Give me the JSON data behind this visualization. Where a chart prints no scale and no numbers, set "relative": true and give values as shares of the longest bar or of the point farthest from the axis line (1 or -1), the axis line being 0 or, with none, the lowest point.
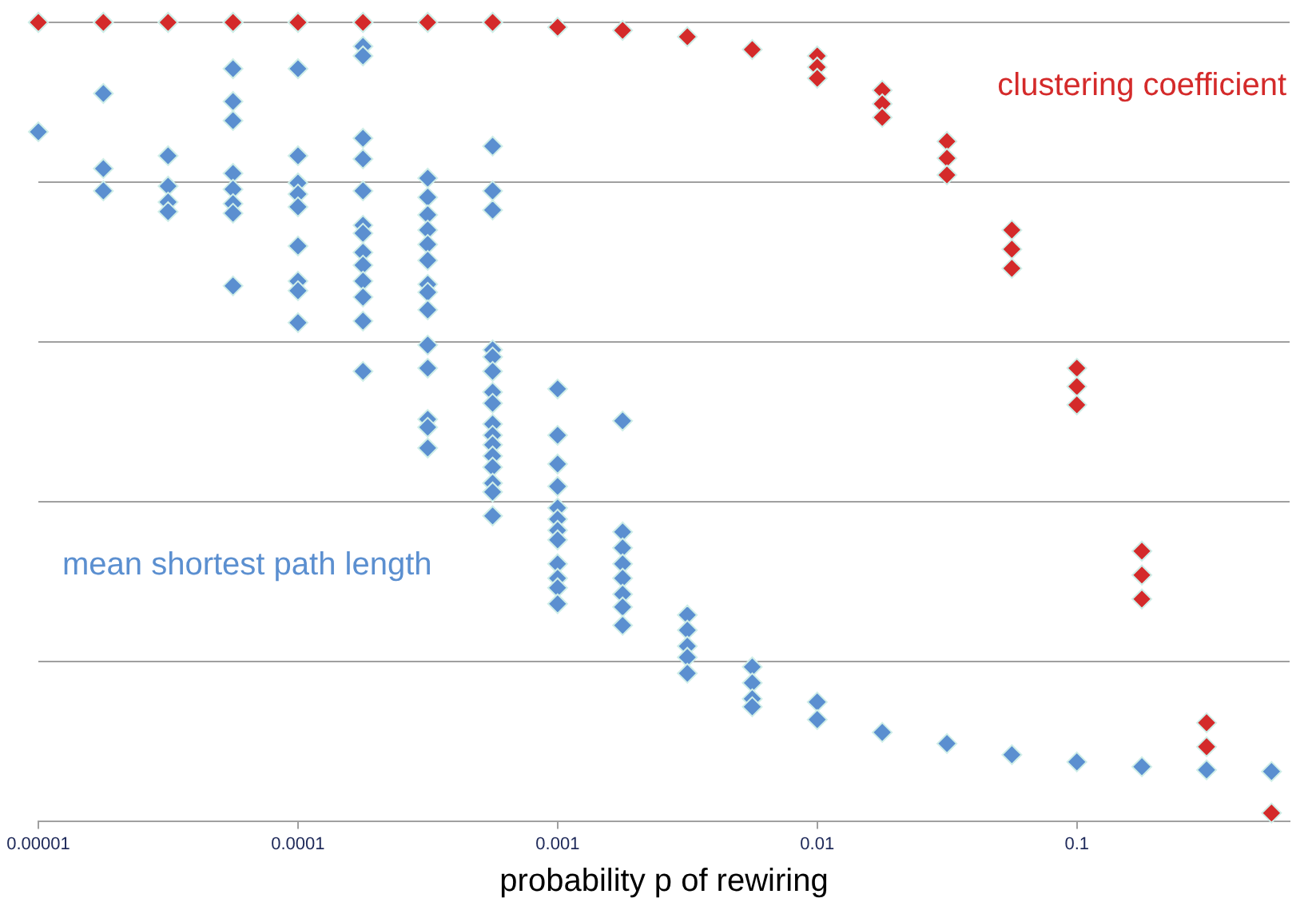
{
  "chart_data": {
    "type": "scatter",
    "xlabel": "probability p of rewiring",
    "log": "x",
    "xlim": [
      1e-05,
      0.66
    ],
    "xticks": [
      {
        "value": 1e-05,
        "label": "0.00001"
      },
      {
        "value": 0.0001,
        "label": "0.0001"
      },
      {
        "value": 0.001,
        "label": "0.001"
      },
      {
        "value": 0.01,
        "label": "0.01"
      },
      {
        "value": 0.1,
        "label": "0.1"
      }
    ],
    "relative": true,
    "grid": "y",
    "legend": false,
    "marker": "diamond",
    "series": [
      {
        "name": "clustering coefficient",
        "color": "#d42a2a",
        "x": [
          1e-05,
          1.78e-05,
          3.16e-05,
          5.62e-05,
          0.0001,
          0.000178,
          0.000316,
          0.000562,
          0.001,
          0.00178,
          0.00316,
          0.00562,
          0.01,
          0.01,
          0.01,
          0.0178,
          0.0178,
          0.0178,
          0.0316,
          0.0316,
          0.0316,
          0.0562,
          0.0562,
          0.0562,
          0.1,
          0.1,
          0.1,
          0.178,
          0.178,
          0.178,
          0.316,
          0.316,
          0.562
        ],
        "values": [
          1,
          1,
          1,
          1,
          1,
          1,
          1,
          1,
          0.994,
          0.99,
          0.982,
          0.966,
          0.958,
          0.944,
          0.93,
          0.915,
          0.898,
          0.881,
          0.851,
          0.83,
          0.809,
          0.74,
          0.716,
          0.692,
          0.567,
          0.544,
          0.521,
          0.338,
          0.308,
          0.278,
          0.123,
          0.093,
          0.01
        ]
      },
      {
        "name": "mean shortest path length",
        "color": "#5b8fd0",
        "x": [
          1e-05,
          1e-05,
          1.78e-05,
          1.78e-05,
          1.78e-05,
          1.78e-05,
          3.16e-05,
          3.16e-05,
          3.16e-05,
          3.16e-05,
          3.16e-05,
          5.62e-05,
          5.62e-05,
          5.62e-05,
          5.62e-05,
          5.62e-05,
          5.62e-05,
          5.62e-05,
          5.62e-05,
          5.62e-05,
          0.0001,
          0.0001,
          0.0001,
          0.0001,
          0.0001,
          0.0001,
          0.0001,
          0.0001,
          0.0001,
          0.0001,
          0.000178,
          0.000178,
          0.000178,
          0.000178,
          0.000178,
          0.000178,
          0.000178,
          0.000178,
          0.000178,
          0.000178,
          0.000178,
          0.000178,
          0.000178,
          0.000178,
          0.000316,
          0.000316,
          0.000316,
          0.000316,
          0.000316,
          0.000316,
          0.000316,
          0.000316,
          0.000316,
          0.000316,
          0.000316,
          0.000316,
          0.000316,
          0.000316,
          0.000316,
          0.000562,
          0.000562,
          0.000562,
          0.000562,
          0.000562,
          0.000562,
          0.000562,
          0.000562,
          0.000562,
          0.000562,
          0.000562,
          0.000562,
          0.000562,
          0.000562,
          0.000562,
          0.000562,
          0.000562,
          0.001,
          0.001,
          0.001,
          0.001,
          0.001,
          0.001,
          0.001,
          0.001,
          0.001,
          0.001,
          0.001,
          0.001,
          0.00178,
          0.00178,
          0.00178,
          0.00178,
          0.00178,
          0.00178,
          0.00178,
          0.00178,
          0.00316,
          0.00316,
          0.00316,
          0.00316,
          0.00316,
          0.00562,
          0.00562,
          0.00562,
          0.00562,
          0.01,
          0.01,
          0.0178,
          0.0316,
          0.0562,
          0.1,
          0.178,
          0.316,
          0.562
        ],
        "values": [
          1,
          0.863,
          1,
          0.911,
          0.817,
          0.789,
          1,
          0.833,
          0.795,
          0.775,
          0.763,
          1,
          0.942,
          0.901,
          0.877,
          0.811,
          0.791,
          0.773,
          0.761,
          0.67,
          1,
          0.942,
          0.833,
          0.799,
          0.785,
          0.769,
          0.72,
          0.676,
          0.664,
          0.624,
          1,
          0.97,
          0.958,
          0.855,
          0.829,
          0.789,
          0.746,
          0.736,
          0.712,
          0.696,
          0.676,
          0.656,
          0.626,
          0.563,
          1,
          0.805,
          0.781,
          0.759,
          0.74,
          0.722,
          0.702,
          0.672,
          0.662,
          0.64,
          0.596,
          0.567,
          0.503,
          0.493,
          0.467,
          1,
          0.845,
          0.789,
          0.765,
          0.59,
          0.581,
          0.563,
          0.537,
          0.523,
          0.497,
          0.483,
          0.471,
          0.457,
          0.443,
          0.423,
          0.412,
          0.382,
          0.541,
          0.483,
          0.447,
          0.419,
          0.392,
          0.378,
          0.364,
          0.352,
          0.322,
          0.304,
          0.292,
          0.272,
          0.501,
          0.362,
          0.342,
          0.322,
          0.304,
          0.284,
          0.268,
          0.245,
          0.258,
          0.239,
          0.219,
          0.205,
          0.185,
          0.193,
          0.173,
          0.153,
          0.143,
          0.149,
          0.127,
          0.111,
          0.097,
          0.083,
          0.074,
          0.068,
          0.064,
          0.062
        ]
      }
    ]
  }
}
